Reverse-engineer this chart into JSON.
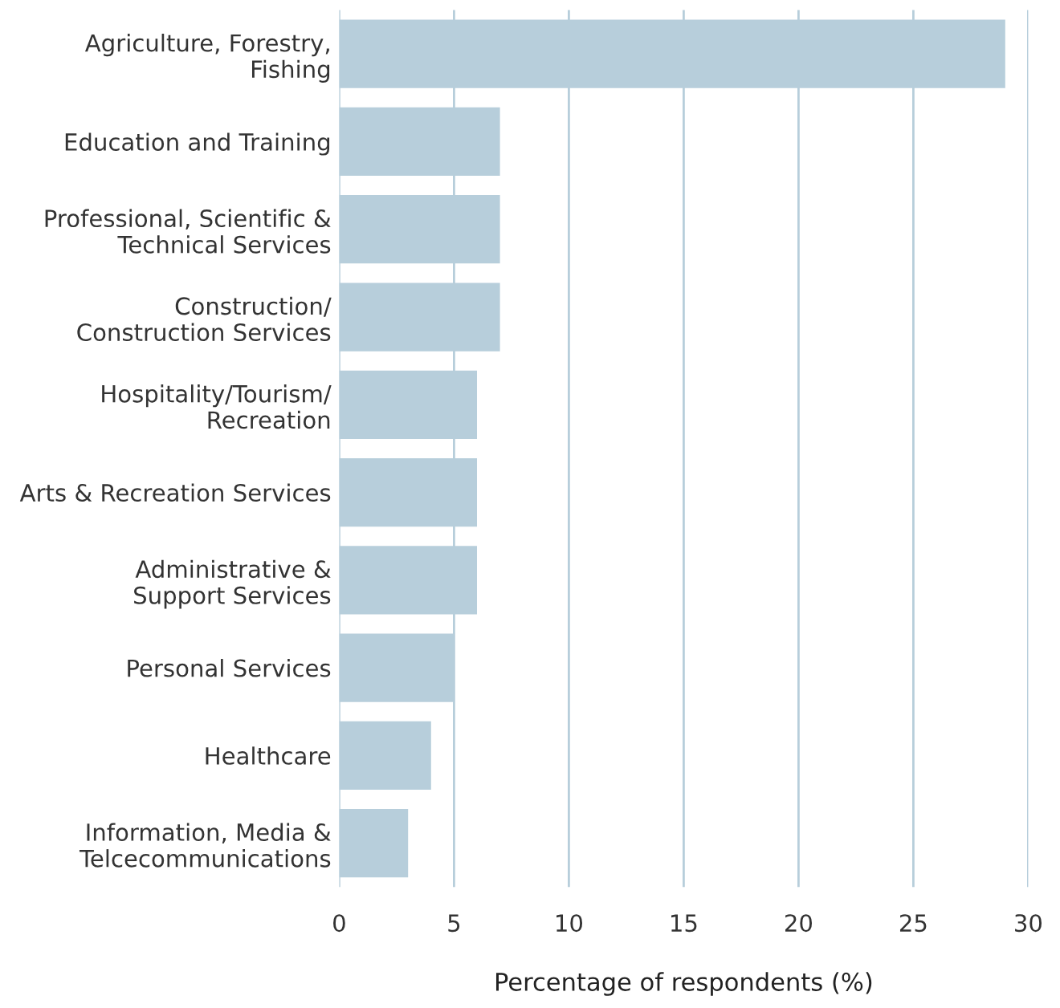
{
  "chart_data": {
    "type": "bar",
    "orientation": "horizontal",
    "xlabel": "Percentage of respondents (%)",
    "categories": [
      "Agriculture, Forestry,\nFishing",
      "Education and Training",
      "Professional, Scientific &\nTechnical Services",
      "Construction/\nConstruction Services",
      "Hospitality/Tourism/\nRecreation",
      "Arts & Recreation Services",
      "Administrative &\nSupport Services",
      "Personal Services",
      "Healthcare",
      "Information, Media &\nTelcecommunications"
    ],
    "values": [
      29,
      7,
      7,
      7,
      6,
      6,
      6,
      5,
      4,
      3
    ],
    "color": "#b7cedb",
    "xlim": [
      0,
      30
    ],
    "xticks": [
      0,
      5,
      10,
      15,
      20,
      25,
      30
    ],
    "grid": "x"
  }
}
